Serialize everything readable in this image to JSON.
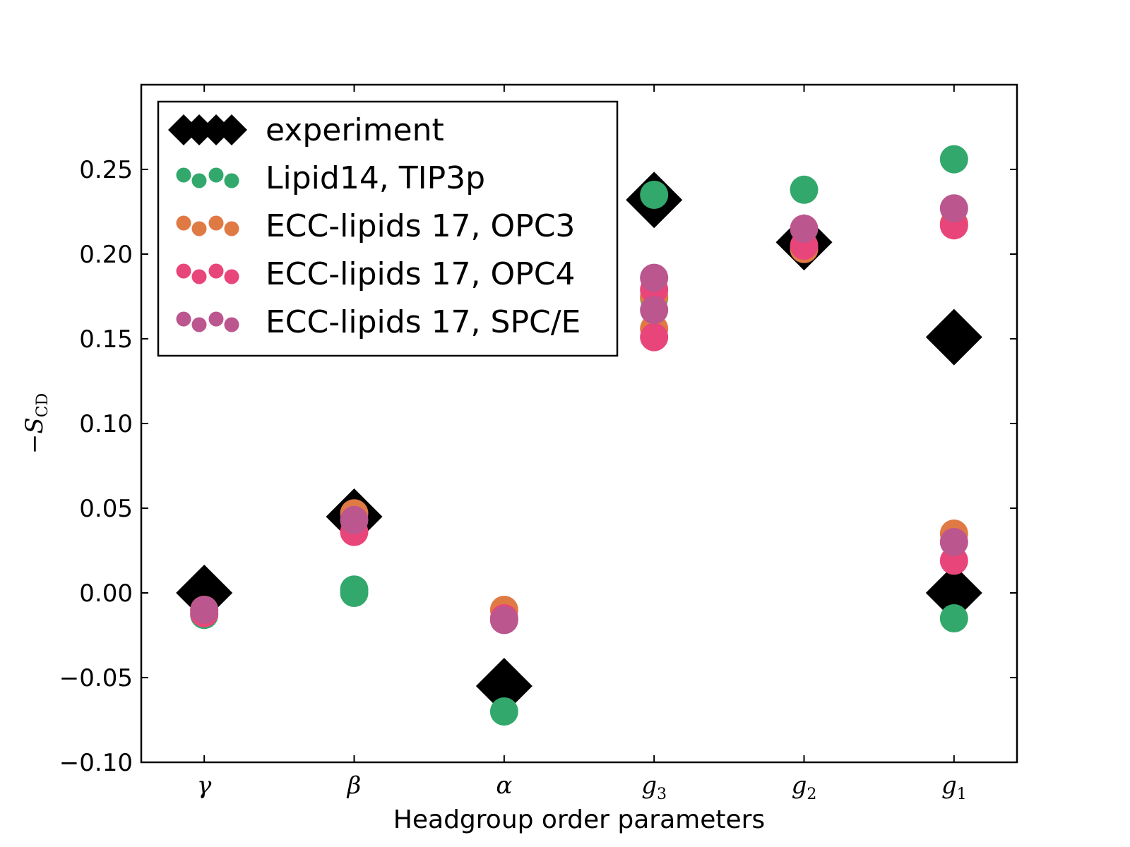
{
  "chart_data": {
    "type": "scatter",
    "title": "",
    "xlabel": "Headgroup order parameters",
    "ylabel": "−S",
    "ylabel_sub": "CD",
    "ylim": [
      -0.1,
      0.3
    ],
    "yticks": [
      {
        "value": -0.1,
        "label": "−0.10"
      },
      {
        "value": -0.05,
        "label": "−0.05"
      },
      {
        "value": 0.0,
        "label": "0.00"
      },
      {
        "value": 0.05,
        "label": "0.05"
      },
      {
        "value": 0.1,
        "label": "0.10"
      },
      {
        "value": 0.15,
        "label": "0.15"
      },
      {
        "value": 0.2,
        "label": "0.20"
      },
      {
        "value": 0.25,
        "label": "0.25"
      }
    ],
    "categories": [
      {
        "main": "γ",
        "sub": ""
      },
      {
        "main": "β",
        "sub": ""
      },
      {
        "main": "α",
        "sub": ""
      },
      {
        "main": "g",
        "sub": "3"
      },
      {
        "main": "g",
        "sub": "2"
      },
      {
        "main": "g",
        "sub": "1"
      }
    ],
    "legend_position": "upper-left",
    "series": [
      {
        "name": "experiment",
        "marker": "diamond",
        "color": "#000000",
        "points": [
          [
            0,
            0.0
          ],
          [
            1,
            0.045
          ],
          [
            2,
            -0.055
          ],
          [
            3,
            0.232
          ],
          [
            4,
            0.207
          ],
          [
            5,
            0.151
          ],
          [
            5,
            0.0
          ]
        ]
      },
      {
        "name": "Lipid14, TIP3p",
        "marker": "circle",
        "color": "#33a86c",
        "points": [
          [
            0,
            -0.013
          ],
          [
            1,
            0.0
          ],
          [
            1,
            0.002
          ],
          [
            2,
            -0.07
          ],
          [
            3,
            0.235
          ],
          [
            3,
            0.174
          ],
          [
            4,
            0.238
          ],
          [
            5,
            0.256
          ],
          [
            5,
            -0.015
          ]
        ]
      },
      {
        "name": "ECC-lipids 17, OPC3",
        "marker": "circle",
        "color": "#e07a45",
        "points": [
          [
            0,
            -0.01
          ],
          [
            1,
            0.047
          ],
          [
            2,
            -0.01
          ],
          [
            3,
            0.156
          ],
          [
            3,
            0.175
          ],
          [
            4,
            0.203
          ],
          [
            5,
            0.035
          ],
          [
            5,
            0.218
          ]
        ]
      },
      {
        "name": "ECC-lipids 17, OPC4",
        "marker": "circle",
        "color": "#e8457a",
        "points": [
          [
            0,
            -0.012
          ],
          [
            1,
            0.036
          ],
          [
            2,
            -0.015
          ],
          [
            3,
            0.151
          ],
          [
            3,
            0.179
          ],
          [
            4,
            0.205
          ],
          [
            5,
            0.019
          ],
          [
            5,
            0.217
          ]
        ]
      },
      {
        "name": "ECC-lipids 17, SPC/E",
        "marker": "circle",
        "color": "#bb568e",
        "points": [
          [
            0,
            -0.01
          ],
          [
            1,
            0.043
          ],
          [
            2,
            -0.016
          ],
          [
            3,
            0.167
          ],
          [
            3,
            0.186
          ],
          [
            4,
            0.215
          ],
          [
            5,
            0.03
          ],
          [
            5,
            0.227
          ]
        ]
      }
    ]
  }
}
